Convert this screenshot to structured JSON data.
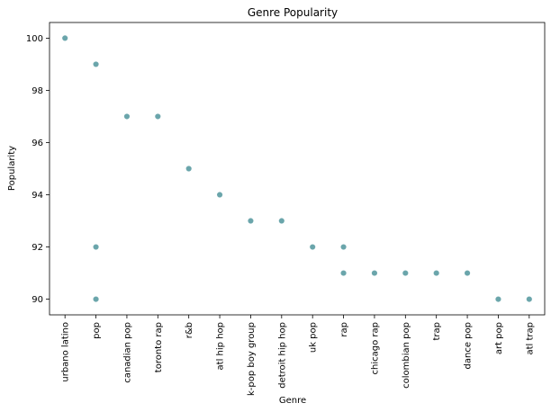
{
  "chart_data": {
    "type": "scatter",
    "title": "Genre Popularity",
    "xlabel": "Genre",
    "ylabel": "Popularity",
    "ylim": [
      89.4,
      100.6
    ],
    "yticks": [
      90,
      92,
      94,
      96,
      98,
      100
    ],
    "grid": false,
    "marker_color": "#6aa5ab",
    "categories": [
      "urbano latino",
      "pop",
      "canadian pop",
      "toronto rap",
      "r&b",
      "atl hip hop",
      "k-pop boy group",
      "detroit hip hop",
      "uk pop",
      "rap",
      "chicago rap",
      "colombian pop",
      "trap",
      "dance pop",
      "art pop",
      "atl trap"
    ],
    "points": [
      {
        "genre": "urbano latino",
        "popularity": 100
      },
      {
        "genre": "pop",
        "popularity": 99
      },
      {
        "genre": "pop",
        "popularity": 92
      },
      {
        "genre": "pop",
        "popularity": 90
      },
      {
        "genre": "canadian pop",
        "popularity": 97
      },
      {
        "genre": "toronto rap",
        "popularity": 97
      },
      {
        "genre": "r&b",
        "popularity": 95
      },
      {
        "genre": "atl hip hop",
        "popularity": 94
      },
      {
        "genre": "k-pop boy group",
        "popularity": 93
      },
      {
        "genre": "detroit hip hop",
        "popularity": 93
      },
      {
        "genre": "uk pop",
        "popularity": 92
      },
      {
        "genre": "rap",
        "popularity": 92
      },
      {
        "genre": "rap",
        "popularity": 91
      },
      {
        "genre": "chicago rap",
        "popularity": 91
      },
      {
        "genre": "colombian pop",
        "popularity": 91
      },
      {
        "genre": "trap",
        "popularity": 91
      },
      {
        "genre": "dance pop",
        "popularity": 91
      },
      {
        "genre": "art pop",
        "popularity": 90
      },
      {
        "genre": "atl trap",
        "popularity": 90
      }
    ]
  }
}
